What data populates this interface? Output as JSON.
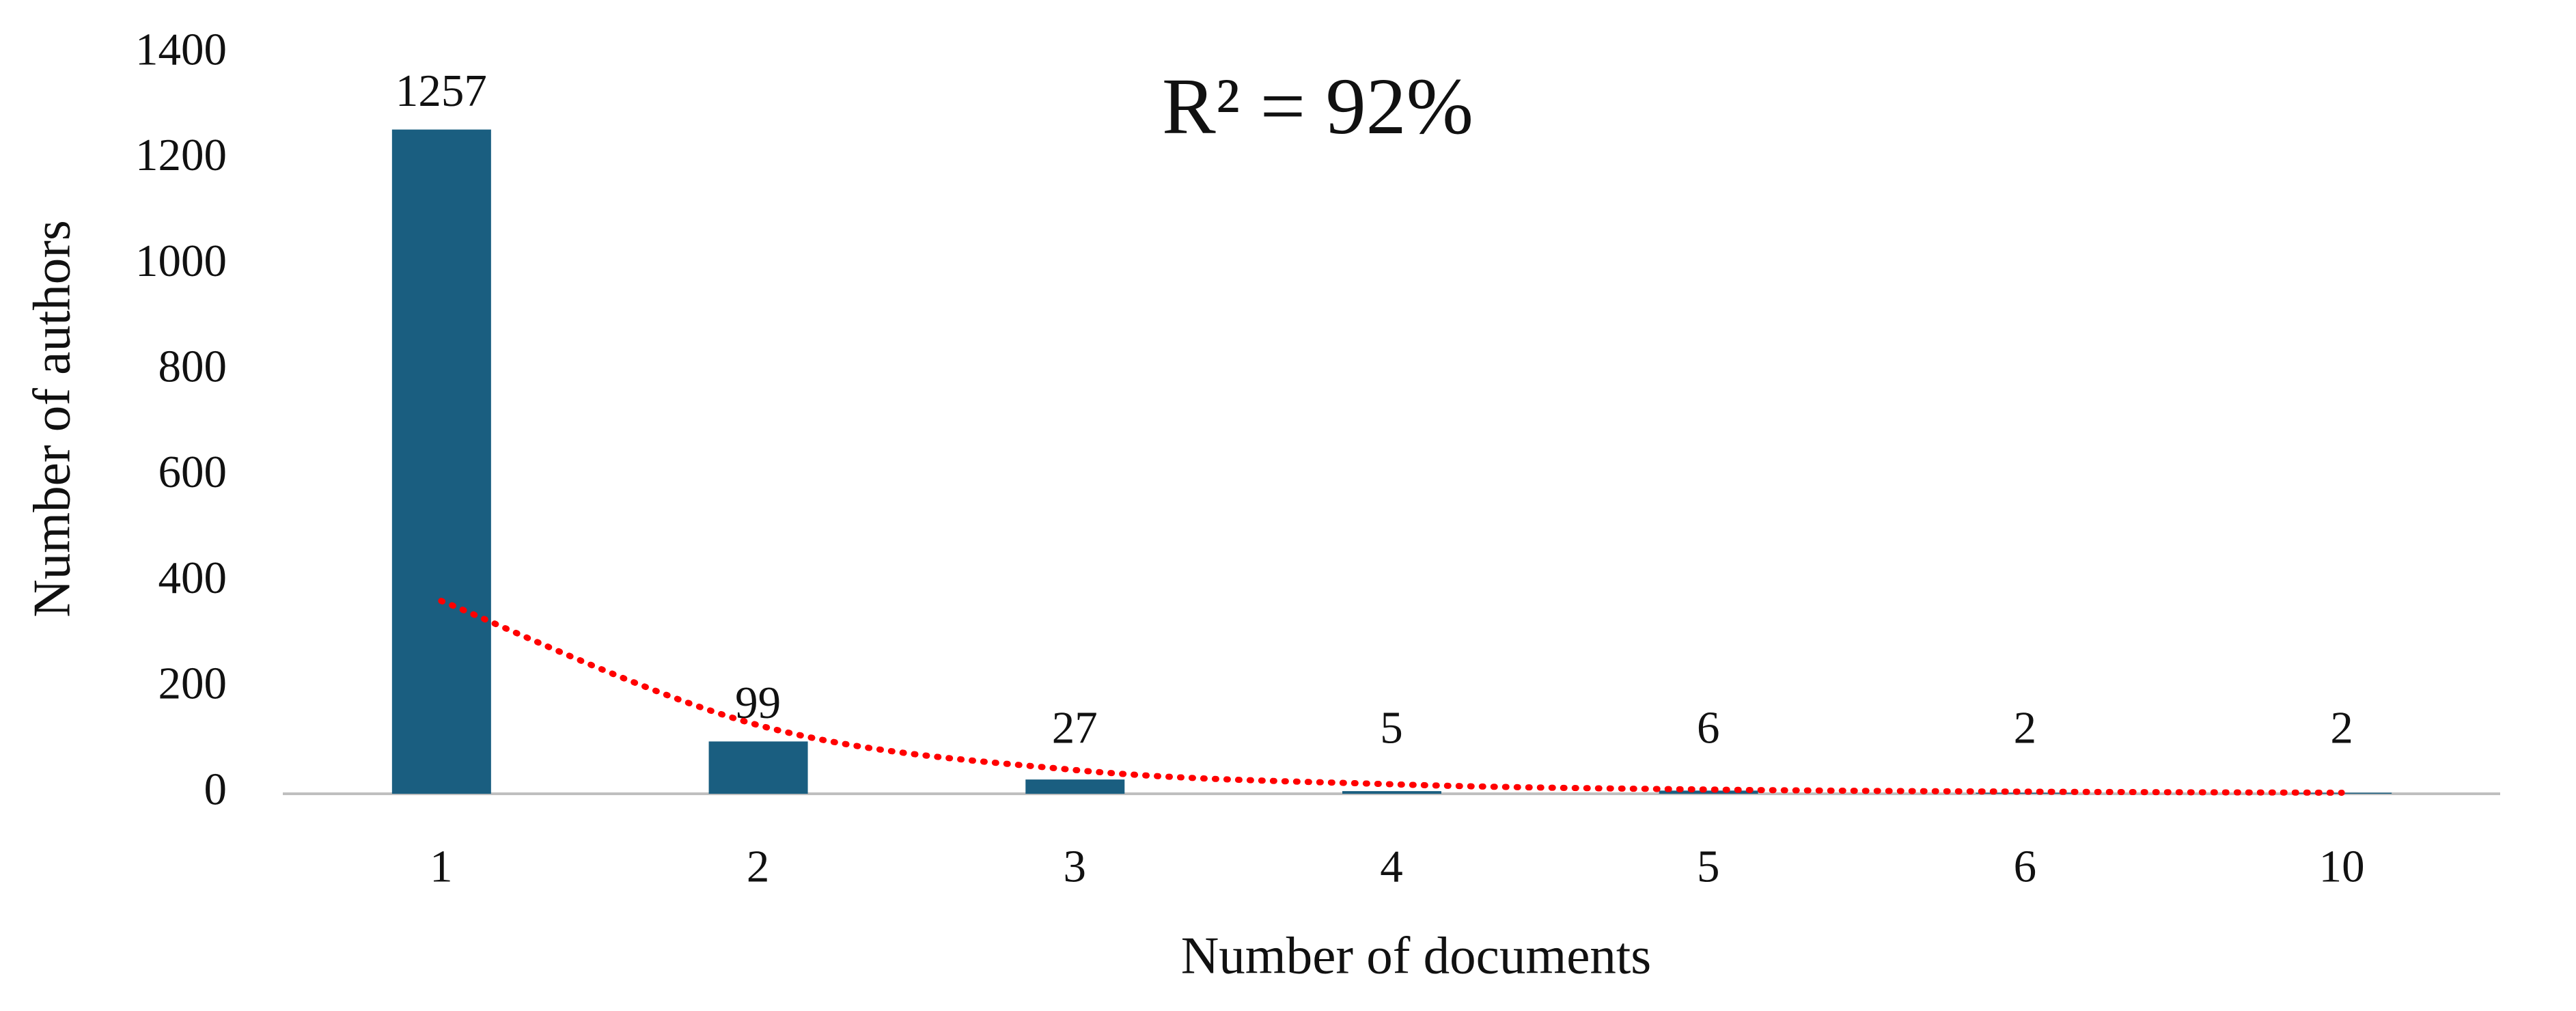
{
  "chart_data": {
    "type": "bar",
    "annotation": "R² = 92%",
    "x_label": "Number of documents",
    "y_label": "Number of authors",
    "categories": [
      "1",
      "2",
      "3",
      "4",
      "5",
      "6",
      "10"
    ],
    "values": [
      1257,
      99,
      27,
      5,
      6,
      2,
      2
    ],
    "color": "#1a5e80",
    "trendline": {
      "values": [
        365,
        130,
        45,
        18,
        8,
        4,
        2
      ],
      "color": "#ff0000"
    },
    "ylim": [
      0,
      1400
    ],
    "yticks": [
      0,
      200,
      400,
      600,
      800,
      1000,
      1200,
      1400
    ],
    "grid": false
  }
}
